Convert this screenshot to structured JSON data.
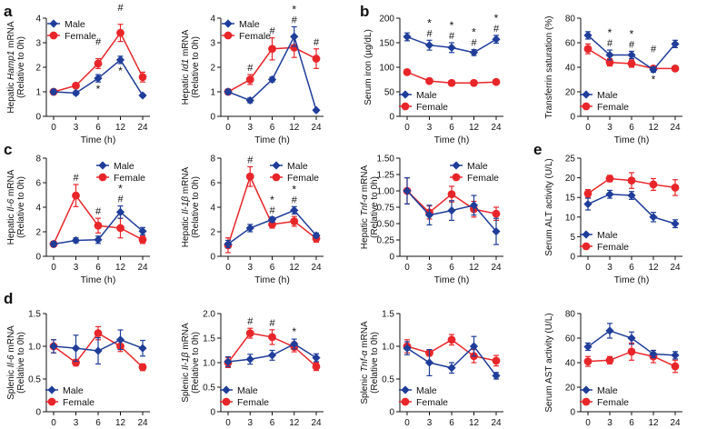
{
  "colors": {
    "male": "#1f3d99",
    "female": "#e8262a",
    "axis": "#111111"
  },
  "legend": {
    "male": "Male",
    "female": "Female"
  },
  "x_label": "Time (h)",
  "x_ticks": [
    "0",
    "3",
    "6",
    "12",
    "24"
  ],
  "panel_letters": {
    "a": "a",
    "b": "b",
    "c": "c",
    "d": "d",
    "e": "e"
  },
  "chart_data": [
    {
      "id": "hamp1",
      "type": "line",
      "ylabel_parts": [
        {
          "t": "Hepatic "
        },
        {
          "t": "Hamp1",
          "i": true
        },
        {
          "t": " mRNA"
        }
      ],
      "ylabel2": "(Relative to 0h)",
      "ylim": [
        0,
        4
      ],
      "yticks": [
        "0",
        "1",
        "2",
        "3",
        "4"
      ],
      "series": [
        {
          "name": "Male",
          "values": [
            1.0,
            0.95,
            1.55,
            2.3,
            0.85
          ],
          "err": [
            0.1,
            0.08,
            0.15,
            0.15,
            0.05
          ]
        },
        {
          "name": "Female",
          "values": [
            1.0,
            1.25,
            2.15,
            3.4,
            1.6
          ],
          "err": [
            0.1,
            0.1,
            0.2,
            0.35,
            0.2
          ]
        }
      ],
      "ann_male": [
        "",
        "",
        "*",
        "*",
        ""
      ],
      "ann_female": [
        "",
        "",
        "#",
        "#",
        ""
      ]
    },
    {
      "id": "id1",
      "type": "line",
      "ylabel_parts": [
        {
          "t": "Hepatic "
        },
        {
          "t": "Id1",
          "i": true
        },
        {
          "t": " mRNA"
        }
      ],
      "ylabel2": "(Relative to 0h)",
      "ylim": [
        0,
        4
      ],
      "yticks": [
        "0",
        "1",
        "2",
        "3",
        "4"
      ],
      "series": [
        {
          "name": "Male",
          "values": [
            1.0,
            0.65,
            1.5,
            3.25,
            0.25
          ],
          "err": [
            0.1,
            0.1,
            0.1,
            0.4,
            0.05
          ]
        },
        {
          "name": "Female",
          "values": [
            1.0,
            1.5,
            2.75,
            2.8,
            2.35
          ],
          "err": [
            0.1,
            0.2,
            0.45,
            0.4,
            0.4
          ]
        }
      ],
      "ann_male": [
        "",
        "",
        "",
        "*",
        ""
      ],
      "ann_female": [
        "",
        "#",
        "#",
        "#",
        "#"
      ]
    },
    {
      "id": "serum_iron",
      "type": "line",
      "ylabel_parts": [
        {
          "t": "Serum iron (µg/dL)"
        }
      ],
      "ylabel2": "",
      "ylim": [
        0,
        200
      ],
      "yticks": [
        "0",
        "50",
        "100",
        "150",
        "200"
      ],
      "series": [
        {
          "name": "Male",
          "values": [
            162,
            145,
            140,
            130,
            157
          ],
          "err": [
            8,
            10,
            10,
            6,
            8
          ]
        },
        {
          "name": "Female",
          "values": [
            90,
            72,
            68,
            68,
            70
          ],
          "err": [
            5,
            5,
            5,
            4,
            4
          ]
        }
      ],
      "ann_male": [
        "",
        "*",
        "*",
        "*",
        "*"
      ],
      "ann_female": [
        "",
        "#",
        "#",
        "#",
        "#"
      ]
    },
    {
      "id": "tsat",
      "type": "line",
      "ylabel_parts": [
        {
          "t": "Transferrin saturation (%)"
        }
      ],
      "ylabel2": "",
      "ylim": [
        0,
        80
      ],
      "yticks": [
        "0",
        "20",
        "40",
        "60",
        "80"
      ],
      "series": [
        {
          "name": "Male",
          "values": [
            66,
            50,
            50,
            38,
            59
          ],
          "err": [
            3,
            4,
            3,
            2,
            3
          ]
        },
        {
          "name": "Female",
          "values": [
            55,
            44,
            43,
            39,
            39
          ],
          "err": [
            4,
            3,
            3,
            2,
            2
          ]
        }
      ],
      "ann_male": [
        "",
        "*",
        "*",
        "*",
        ""
      ],
      "ann_female": [
        "",
        "#",
        "#",
        "#",
        ""
      ]
    },
    {
      "id": "il6_hep",
      "type": "line",
      "ylabel_parts": [
        {
          "t": "Hepatic "
        },
        {
          "t": "Il-6",
          "i": true
        },
        {
          "t": " mRNA"
        }
      ],
      "ylabel2": "(Relative to 0h)",
      "ylim": [
        0,
        8
      ],
      "yticks": [
        "0",
        "2",
        "4",
        "6",
        "8"
      ],
      "series": [
        {
          "name": "Male",
          "values": [
            1.0,
            1.3,
            1.35,
            3.6,
            2.05
          ],
          "err": [
            0.2,
            0.2,
            0.3,
            0.5,
            0.3
          ]
        },
        {
          "name": "Female",
          "values": [
            1.0,
            4.95,
            2.5,
            2.3,
            1.35
          ],
          "err": [
            0.2,
            0.9,
            0.6,
            0.8,
            0.3
          ]
        }
      ],
      "ann_male": [
        "",
        "",
        "",
        "*",
        ""
      ],
      "ann_female": [
        "",
        "#",
        "#",
        "#",
        ""
      ]
    },
    {
      "id": "il1b_hep",
      "type": "line",
      "ylabel_parts": [
        {
          "t": "Hepatic "
        },
        {
          "t": "Il-1β",
          "i": true
        },
        {
          "t": " mRNA"
        }
      ],
      "ylabel2": "(Relative to 0h)",
      "ylim": [
        0,
        8
      ],
      "yticks": [
        "0",
        "2",
        "4",
        "6",
        "8"
      ],
      "series": [
        {
          "name": "Male",
          "values": [
            1.0,
            2.3,
            3.0,
            3.75,
            1.7
          ],
          "err": [
            0.3,
            0.3,
            0.2,
            0.3,
            0.2
          ]
        },
        {
          "name": "Female",
          "values": [
            0.9,
            6.5,
            2.6,
            2.85,
            1.45
          ],
          "err": [
            0.6,
            0.8,
            0.3,
            0.4,
            0.3
          ]
        }
      ],
      "ann_male": [
        "",
        "",
        "*",
        "*",
        ""
      ],
      "ann_female": [
        "",
        "#",
        "#",
        "#",
        ""
      ]
    },
    {
      "id": "tnf_hep",
      "type": "line",
      "ylabel_parts": [
        {
          "t": "Hepatic "
        },
        {
          "t": "Tnf-α",
          "i": true
        },
        {
          "t": " mRNA"
        }
      ],
      "ylabel2": "(Relative to 0h)",
      "ylim": [
        0,
        1.5
      ],
      "yticks": [
        "0",
        "0.25",
        "0.50",
        "0.75",
        "1.00",
        "1.25",
        "1.50"
      ],
      "series": [
        {
          "name": "Male",
          "values": [
            1.0,
            0.63,
            0.7,
            0.78,
            0.38
          ],
          "err": [
            0.2,
            0.15,
            0.15,
            0.15,
            0.2
          ]
        },
        {
          "name": "Female",
          "values": [
            1.0,
            0.67,
            0.95,
            0.72,
            0.65
          ],
          "err": [
            0.2,
            0.1,
            0.12,
            0.12,
            0.1
          ]
        }
      ],
      "ann_male": [
        "",
        "",
        "",
        "",
        ""
      ],
      "ann_female": [
        "",
        "",
        "",
        "",
        ""
      ]
    },
    {
      "id": "alt",
      "type": "line",
      "ylabel_parts": [
        {
          "t": "Serum ALT activity (U/L)"
        }
      ],
      "ylabel2": "",
      "ylim": [
        0,
        25
      ],
      "yticks": [
        "0",
        "5",
        "10",
        "15",
        "20",
        "25"
      ],
      "series": [
        {
          "name": "Male",
          "values": [
            13.3,
            15.8,
            15.5,
            10,
            8.3
          ],
          "err": [
            1.5,
            1.0,
            1.0,
            1.2,
            1.0
          ]
        },
        {
          "name": "Female",
          "values": [
            16,
            19.8,
            19.3,
            18.3,
            17.5
          ],
          "err": [
            1.0,
            0.8,
            2.0,
            1.5,
            2.0
          ]
        }
      ],
      "ann_male": [
        "",
        "",
        "",
        "",
        ""
      ],
      "ann_female": [
        "",
        "",
        "",
        "",
        ""
      ]
    },
    {
      "id": "il6_spl",
      "type": "line",
      "ylabel_parts": [
        {
          "t": "Splenic "
        },
        {
          "t": "Il-6",
          "i": true
        },
        {
          "t": " mRNA"
        }
      ],
      "ylabel2": "(Relative to 0h)",
      "ylim": [
        0,
        1.5
      ],
      "yticks": [
        "0",
        "0.5",
        "1.0",
        "1.5"
      ],
      "series": [
        {
          "name": "Male",
          "values": [
            1.0,
            0.97,
            0.93,
            1.1,
            0.97
          ],
          "err": [
            0.1,
            0.2,
            0.2,
            0.15,
            0.12
          ]
        },
        {
          "name": "Female",
          "values": [
            1.0,
            0.75,
            1.2,
            1.0,
            0.68
          ],
          "err": [
            0.1,
            0.05,
            0.1,
            0.08,
            0.05
          ]
        }
      ],
      "ann_male": [
        "",
        "",
        "",
        "",
        ""
      ],
      "ann_female": [
        "",
        "",
        "",
        "",
        ""
      ]
    },
    {
      "id": "il1b_spl",
      "type": "line",
      "ylabel_parts": [
        {
          "t": "Splenic "
        },
        {
          "t": "Il-1β",
          "i": true
        },
        {
          "t": " mRNA"
        }
      ],
      "ylabel2": "(Relative to 0h)",
      "ylim": [
        0,
        2.0
      ],
      "yticks": [
        "0",
        "0.5",
        "1.0",
        "1.5",
        "2.0"
      ],
      "series": [
        {
          "name": "Male",
          "values": [
            1.02,
            1.07,
            1.15,
            1.38,
            1.1
          ],
          "err": [
            0.1,
            0.1,
            0.1,
            0.1,
            0.08
          ]
        },
        {
          "name": "Female",
          "values": [
            1.0,
            1.6,
            1.52,
            1.32,
            0.92
          ],
          "err": [
            0.1,
            0.1,
            0.15,
            0.1,
            0.08
          ]
        }
      ],
      "ann_male": [
        "",
        "",
        "",
        "*",
        ""
      ],
      "ann_female": [
        "",
        "#",
        "#",
        "",
        ""
      ]
    },
    {
      "id": "tnf_spl",
      "type": "line",
      "ylabel_parts": [
        {
          "t": "Splenic "
        },
        {
          "t": "Tnf-α",
          "i": true
        },
        {
          "t": " mRNA"
        }
      ],
      "ylabel2": "(Relative to 0h)",
      "ylim": [
        0,
        1.5
      ],
      "yticks": [
        "0",
        "0.5",
        "1.0",
        "1.5"
      ],
      "series": [
        {
          "name": "Male",
          "values": [
            0.97,
            0.75,
            0.67,
            1.0,
            0.55
          ],
          "err": [
            0.1,
            0.2,
            0.08,
            0.15,
            0.05
          ]
        },
        {
          "name": "Female",
          "values": [
            1.0,
            0.9,
            1.1,
            0.85,
            0.78
          ],
          "err": [
            0.1,
            0.05,
            0.08,
            0.1,
            0.08
          ]
        }
      ],
      "ann_male": [
        "",
        "",
        "",
        "",
        ""
      ],
      "ann_female": [
        "",
        "",
        "",
        "",
        ""
      ]
    },
    {
      "id": "ast",
      "type": "line",
      "ylabel_parts": [
        {
          "t": "Serum AST activity (U/L)"
        }
      ],
      "ylabel2": "",
      "ylim": [
        0,
        80
      ],
      "yticks": [
        "0",
        "20",
        "40",
        "60",
        "80"
      ],
      "series": [
        {
          "name": "Male",
          "values": [
            53,
            66,
            60,
            47,
            46
          ],
          "err": [
            3,
            6,
            5,
            3,
            3
          ]
        },
        {
          "name": "Female",
          "values": [
            41,
            42,
            49,
            45,
            37
          ],
          "err": [
            4,
            3,
            7,
            5,
            5
          ]
        }
      ],
      "ann_male": [
        "",
        "",
        "",
        "",
        ""
      ],
      "ann_female": [
        "",
        "",
        "",
        "",
        ""
      ]
    }
  ]
}
